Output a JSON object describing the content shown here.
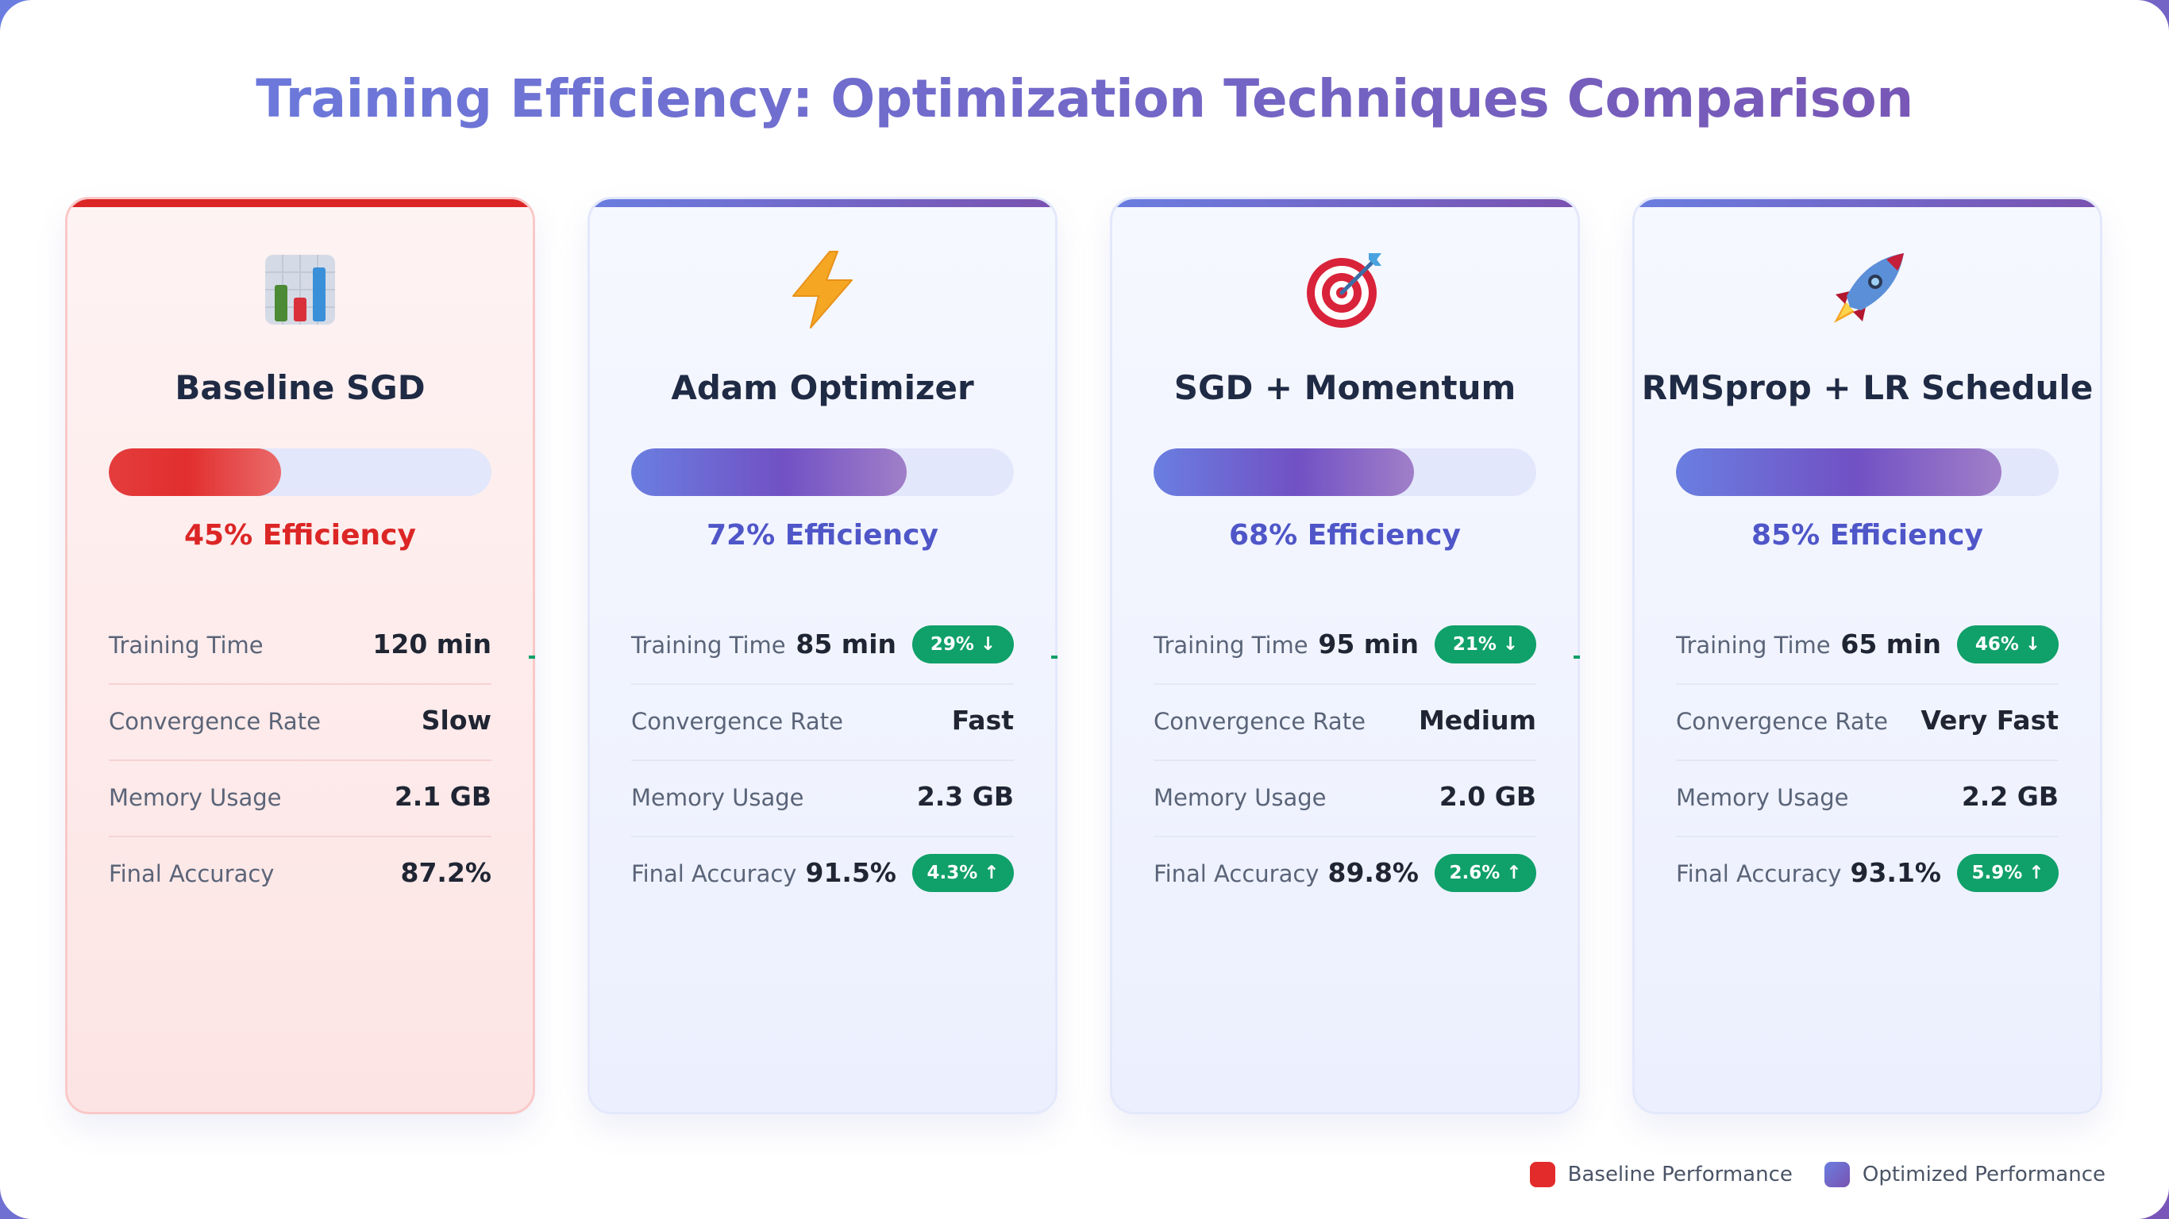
{
  "title": "Training Efficiency: Optimization Techniques Comparison",
  "colors": {
    "baseline_accent": "#dc2626",
    "optimized_gradient_start": "#6a7ee0",
    "optimized_gradient_end": "#7a52b0",
    "improvement_badge": "#10a06a"
  },
  "cards": [
    {
      "name": "Baseline SGD",
      "icon": "bar-chart-icon",
      "efficiency_percent": 45,
      "efficiency_label": "45% Efficiency",
      "metrics": {
        "training_time": {
          "label": "Training Time",
          "value": "120 min"
        },
        "convergence_rate": {
          "label": "Convergence Rate",
          "value": "Slow"
        },
        "memory_usage": {
          "label": "Memory Usage",
          "value": "2.1 GB"
        },
        "final_accuracy": {
          "label": "Final Accuracy",
          "value": "87.2%"
        }
      }
    },
    {
      "name": "Adam Optimizer",
      "icon": "lightning-icon",
      "efficiency_percent": 72,
      "efficiency_label": "72% Efficiency",
      "metrics": {
        "training_time": {
          "label": "Training Time",
          "value": "85 min",
          "badge": "29% ↓"
        },
        "convergence_rate": {
          "label": "Convergence Rate",
          "value": "Fast"
        },
        "memory_usage": {
          "label": "Memory Usage",
          "value": "2.3 GB"
        },
        "final_accuracy": {
          "label": "Final Accuracy",
          "value": "91.5%",
          "badge": "4.3% ↑"
        }
      }
    },
    {
      "name": "SGD + Momentum",
      "icon": "target-icon",
      "efficiency_percent": 68,
      "efficiency_label": "68% Efficiency",
      "metrics": {
        "training_time": {
          "label": "Training Time",
          "value": "95 min",
          "badge": "21% ↓"
        },
        "convergence_rate": {
          "label": "Convergence Rate",
          "value": "Medium"
        },
        "memory_usage": {
          "label": "Memory Usage",
          "value": "2.0 GB"
        },
        "final_accuracy": {
          "label": "Final Accuracy",
          "value": "89.8%",
          "badge": "2.6% ↑"
        }
      }
    },
    {
      "name": "RMSprop + LR Schedule",
      "icon": "rocket-icon",
      "efficiency_percent": 85,
      "efficiency_label": "85% Efficiency",
      "metrics": {
        "training_time": {
          "label": "Training Time",
          "value": "65 min",
          "badge": "46% ↓"
        },
        "convergence_rate": {
          "label": "Convergence Rate",
          "value": "Very Fast"
        },
        "memory_usage": {
          "label": "Memory Usage",
          "value": "2.2 GB"
        },
        "final_accuracy": {
          "label": "Final Accuracy",
          "value": "93.1%",
          "badge": "5.9% ↑"
        }
      }
    }
  ],
  "legend": {
    "baseline_label": "Baseline Performance",
    "optimized_label": "Optimized Performance"
  }
}
